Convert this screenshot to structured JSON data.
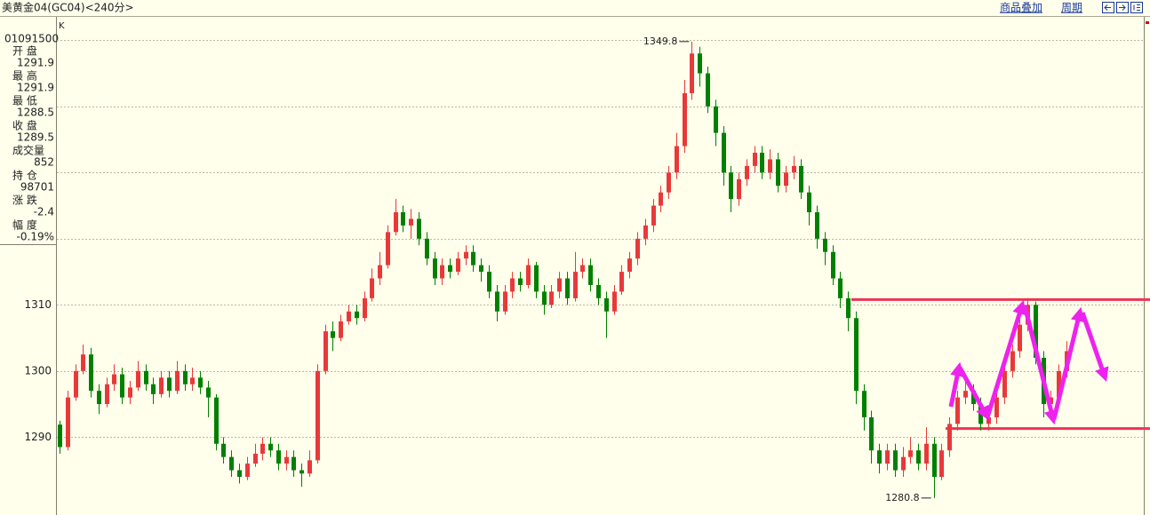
{
  "header": {
    "title": "美黄金04(GC04)<240分>",
    "links": [
      "商品叠加",
      "周期"
    ]
  },
  "info": {
    "time": "01091500",
    "rows": [
      {
        "label": "开 盘",
        "value": "1291.9",
        "color": "#808080"
      },
      {
        "label": "最 高",
        "value": "1291.9",
        "color": "#808080"
      },
      {
        "label": "最 低",
        "value": "1288.5",
        "color": "#008000"
      },
      {
        "label": "收 盘",
        "value": "1289.5",
        "color": "#008000"
      },
      {
        "label": "成交量",
        "value": "852",
        "color": "#404040"
      },
      {
        "label": "持 仓",
        "value": "98701",
        "color": "#404040"
      },
      {
        "label": "涨 跌",
        "value": "-2.4",
        "color": "#008000"
      },
      {
        "label": "幅 度",
        "value": "-0.19%",
        "color": "#008000"
      }
    ]
  },
  "chart_data": {
    "type": "candlestick",
    "panel_label": "K",
    "up_color": "#e8393a",
    "down_color": "#008000",
    "ylim": [
      1278.5,
      1353.4
    ],
    "yticks": [
      1290,
      1300,
      1310
    ],
    "gridlines": [
      1290,
      1300,
      1310,
      1320,
      1330,
      1340,
      1350
    ],
    "hlines": [
      1310.8,
      1291.3
    ],
    "hline_color": "#ee3355",
    "open": [
      1291.9,
      1288.5,
      1296,
      1300,
      1302.5,
      1297,
      1295,
      1298,
      1299.5,
      1296,
      1297.5,
      1300,
      1298,
      1296.5,
      1299,
      1297,
      1300,
      1298,
      1299,
      1297.5,
      1296,
      1289,
      1287,
      1285,
      1284,
      1286,
      1287.5,
      1289,
      1288,
      1286,
      1287,
      1285,
      1284.5,
      1286.5,
      1300,
      1306,
      1305,
      1307.5,
      1309,
      1308,
      1311,
      1314,
      1316,
      1321,
      1324,
      1322,
      1323,
      1320,
      1317,
      1314,
      1316,
      1315,
      1317,
      1318,
      1316,
      1315,
      1312,
      1309,
      1312,
      1314,
      1313,
      1316,
      1312,
      1310,
      1312,
      1314,
      1311,
      1315,
      1316,
      1313,
      1311,
      1309,
      1312,
      1315,
      1317,
      1320,
      1322,
      1325,
      1327,
      1330,
      1334,
      1342,
      1348,
      1345,
      1340,
      1336,
      1330,
      1326,
      1329,
      1331,
      1333,
      1330,
      1332,
      1328,
      1330,
      1331,
      1327,
      1324,
      1320,
      1318,
      1314,
      1311,
      1308,
      1297,
      1293,
      1288,
      1286,
      1288,
      1285,
      1287,
      1288,
      1286,
      1289,
      1284,
      1288,
      1292,
      1296,
      1297,
      1295,
      1292,
      1293,
      1296,
      1300,
      1303,
      1307,
      1310,
      1302,
      1295,
      1296,
      1300
    ],
    "high": [
      1292.5,
      1297,
      1301,
      1304,
      1303.5,
      1298,
      1299,
      1301,
      1300.5,
      1298.5,
      1301.5,
      1301,
      1299,
      1300,
      1300,
      1301.5,
      1301,
      1300.5,
      1300,
      1298.5,
      1296.5,
      1290,
      1288,
      1286,
      1287,
      1289,
      1290,
      1290,
      1289,
      1288,
      1288,
      1286,
      1288,
      1301,
      1307,
      1307.5,
      1308.5,
      1310,
      1310,
      1312,
      1315.5,
      1318,
      1322,
      1326,
      1325,
      1324.5,
      1324,
      1321,
      1318,
      1317,
      1317,
      1318,
      1319,
      1319,
      1317,
      1316,
      1313,
      1313,
      1315,
      1315,
      1317,
      1316.5,
      1313,
      1313,
      1315,
      1315,
      1318,
      1317,
      1317,
      1314,
      1312,
      1313,
      1316,
      1318,
      1321,
      1323,
      1326,
      1328,
      1331,
      1336,
      1344,
      1349.8,
      1349,
      1346,
      1341,
      1337,
      1331,
      1330,
      1332,
      1334,
      1334,
      1333.5,
      1333,
      1331,
      1332.5,
      1332,
      1328,
      1325,
      1321,
      1319,
      1315,
      1312,
      1309,
      1298,
      1294,
      1289,
      1289,
      1289,
      1288.5,
      1290,
      1289,
      1291.5,
      1290,
      1289,
      1293,
      1297,
      1299,
      1298,
      1296,
      1294,
      1297,
      1301,
      1304,
      1308,
      1311,
      1310.5,
      1303,
      1297,
      1301,
      1304.5
    ],
    "low": [
      1287.5,
      1288,
      1295.5,
      1299.5,
      1296,
      1293.5,
      1294.5,
      1297,
      1295,
      1295,
      1297,
      1297,
      1295,
      1296,
      1296,
      1296.5,
      1297,
      1297,
      1296.5,
      1293,
      1288,
      1286,
      1284,
      1283,
      1283.5,
      1285.5,
      1286.5,
      1287,
      1285,
      1285,
      1284,
      1282.5,
      1284,
      1286,
      1299.5,
      1303,
      1304.5,
      1307,
      1307,
      1307.5,
      1310.5,
      1313,
      1315.5,
      1320.5,
      1321,
      1320,
      1319,
      1316,
      1313,
      1313,
      1314,
      1314.5,
      1316,
      1315,
      1313.5,
      1311,
      1307.5,
      1308.5,
      1311,
      1312,
      1312.5,
      1311,
      1308.5,
      1309.5,
      1311,
      1310,
      1310.5,
      1314,
      1312,
      1310,
      1305,
      1308.5,
      1311.5,
      1314,
      1316,
      1319,
      1321,
      1324,
      1326,
      1329,
      1333,
      1341,
      1343,
      1339,
      1334,
      1328,
      1324,
      1325,
      1328,
      1330,
      1329,
      1329,
      1327,
      1327,
      1329,
      1326,
      1322,
      1318.5,
      1316,
      1313,
      1309.5,
      1306,
      1295,
      1291,
      1286,
      1284.5,
      1285,
      1284,
      1284,
      1286,
      1285,
      1285,
      1280.8,
      1283.5,
      1287,
      1291,
      1295,
      1294,
      1291,
      1291,
      1292,
      1295,
      1299,
      1302,
      1306,
      1301,
      1293,
      1294,
      1295,
      1299
    ],
    "close": [
      1288.5,
      1296,
      1300,
      1302.5,
      1297,
      1295,
      1298,
      1299.5,
      1296,
      1297.5,
      1300,
      1298,
      1296.5,
      1299,
      1297,
      1300,
      1298,
      1299,
      1297.5,
      1296,
      1289,
      1287,
      1285,
      1284,
      1286,
      1287.5,
      1289,
      1288,
      1286,
      1287,
      1285,
      1284.5,
      1286.5,
      1300,
      1306,
      1305,
      1307.5,
      1309,
      1308,
      1311,
      1314,
      1316,
      1321,
      1324,
      1322,
      1323,
      1320,
      1317,
      1314,
      1316,
      1315,
      1317,
      1318,
      1316,
      1315,
      1312,
      1309,
      1312,
      1314,
      1313,
      1316,
      1312,
      1310,
      1312,
      1314,
      1311,
      1315,
      1316,
      1313,
      1311,
      1309,
      1312,
      1315,
      1317,
      1320,
      1322,
      1325,
      1327,
      1330,
      1334,
      1342,
      1348,
      1345,
      1340,
      1336,
      1330,
      1326,
      1329,
      1331,
      1333,
      1330,
      1332,
      1328,
      1330,
      1331,
      1327,
      1324,
      1320,
      1318,
      1314,
      1311,
      1308,
      1297,
      1293,
      1288,
      1286,
      1288,
      1285,
      1287,
      1288,
      1286,
      1289,
      1284,
      1288,
      1292,
      1296,
      1297,
      1295,
      1292,
      1293,
      1296,
      1300,
      1303,
      1307,
      1310,
      1302,
      1295,
      1296,
      1300,
      1303
    ]
  }
}
